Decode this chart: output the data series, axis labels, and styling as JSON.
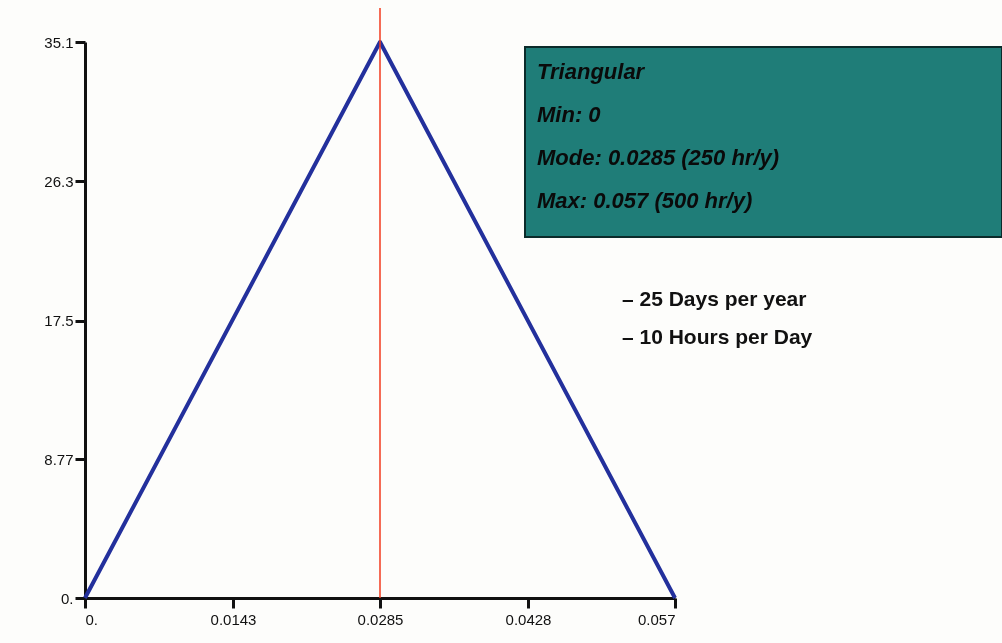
{
  "chart_data": {
    "type": "line",
    "x": [
      0,
      0.0285,
      0.057
    ],
    "series": [
      {
        "color": "#23309c",
        "values": [
          0,
          35.1,
          0
        ]
      }
    ],
    "xlim": [
      0,
      0.057
    ],
    "xticks": [
      {
        "value": 0,
        "label": "0."
      },
      0.0143,
      0.0285,
      0.0428,
      0.057
    ],
    "ylim": [
      0,
      35.1
    ],
    "yticks": [
      {
        "value": 0,
        "label": "0."
      },
      8.77,
      17.5,
      26.3,
      35.1
    ],
    "ref_lines": [
      {
        "axis": "x",
        "value": 0.0285,
        "color": "#f23a1e"
      }
    ],
    "annotations": [
      "Triangular",
      "Min:  0",
      "Mode:  0.0285 (250 hr/y)",
      "Max:  0.057 (500 hr/y)",
      "–  25 Days per year",
      "–  10 Hours per Day"
    ],
    "grid": false,
    "marker": "none",
    "line_style": "solid"
  }
}
